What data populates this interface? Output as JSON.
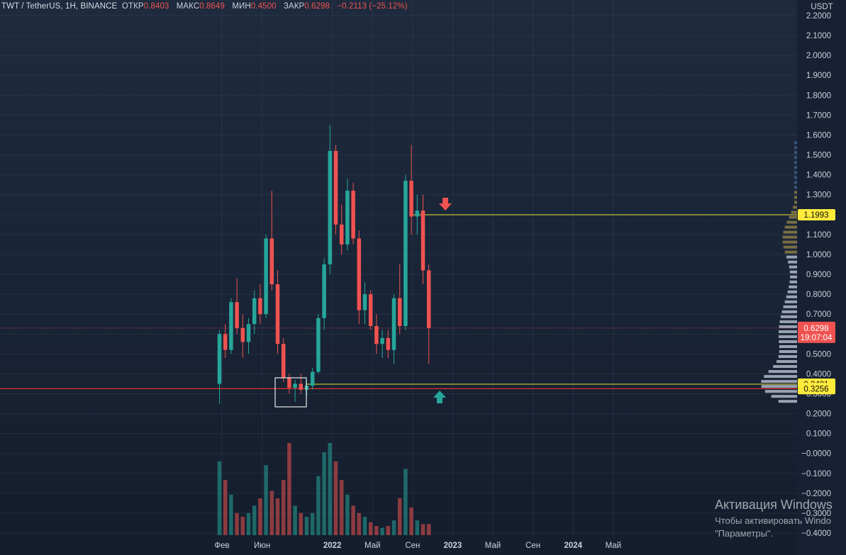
{
  "header": {
    "symbol": "TWT / TetherUS, 1H, BINANCE",
    "open_label": "ОТКР",
    "open_value": "0.8403",
    "high_label": "МАКС",
    "high_value": "0.8649",
    "low_label": "МИН",
    "low_value": "0.4500",
    "close_label": "ЗАКР",
    "close_value": "0.6298",
    "change": "−0.2113 (−25.12%)"
  },
  "watermark": {
    "line1": "Активация Windows",
    "line2": "Чтобы активировать Windo",
    "line3": "\"Параметры\"."
  },
  "colors": {
    "up": "#26a69a",
    "down": "#ef5350",
    "level_line": "#e7e335",
    "support_line": "#d32f2f",
    "price_badge": "#ef5350",
    "level_badge": "#ffeb3b"
  },
  "chart_data": {
    "type": "candlestick",
    "y_axis_unit": "USDT",
    "ylim": [
      -0.42,
      2.23
    ],
    "y_ticks": [
      "2.2000",
      "2.1000",
      "2.0000",
      "1.9000",
      "1.8000",
      "1.7000",
      "1.6000",
      "1.5000",
      "1.4000",
      "1.3000",
      "1.2000",
      "1.1000",
      "1.0000",
      "0.9000",
      "0.8000",
      "0.7000",
      "0.6000",
      "0.5000",
      "0.4000",
      "0.3000",
      "0.2000",
      "0.1000",
      "−0.0000",
      "−0.1000",
      "−0.2000",
      "−0.3000",
      "−0.4000"
    ],
    "x_labels": [
      "Фев",
      "Июн",
      "2022",
      "Май",
      "Сен",
      "2023",
      "Май",
      "Сен",
      "2024",
      "Май"
    ],
    "x_label_index": [
      0,
      4,
      11,
      15,
      19,
      23,
      27,
      31,
      35,
      39
    ],
    "last_price": "0.6298",
    "countdown": "19:07:04",
    "levels": [
      {
        "value": 1.1993,
        "label": "1.1993"
      },
      {
        "value": 0.3481,
        "label": "0.3481"
      },
      {
        "value": 0.3256,
        "label": "0.3256"
      }
    ],
    "candles_ohlc": [
      [
        0.35,
        0.62,
        0.25,
        0.6
      ],
      [
        0.6,
        0.65,
        0.48,
        0.52
      ],
      [
        0.52,
        0.78,
        0.5,
        0.76
      ],
      [
        0.76,
        0.88,
        0.6,
        0.63
      ],
      [
        0.63,
        0.7,
        0.48,
        0.56
      ],
      [
        0.56,
        0.68,
        0.5,
        0.65
      ],
      [
        0.65,
        0.82,
        0.6,
        0.78
      ],
      [
        0.78,
        0.85,
        0.65,
        0.7
      ],
      [
        0.7,
        1.1,
        0.68,
        1.08
      ],
      [
        1.08,
        1.32,
        0.82,
        0.85
      ],
      [
        0.85,
        0.92,
        0.5,
        0.55
      ],
      [
        0.55,
        0.58,
        0.36,
        0.38
      ],
      [
        0.38,
        0.4,
        0.3,
        0.33
      ],
      [
        0.33,
        0.37,
        0.26,
        0.35
      ],
      [
        0.35,
        0.4,
        0.3,
        0.32
      ],
      [
        0.32,
        0.36,
        0.29,
        0.34
      ],
      [
        0.34,
        0.43,
        0.32,
        0.41
      ],
      [
        0.41,
        0.7,
        0.4,
        0.68
      ],
      [
        0.68,
        0.98,
        0.62,
        0.95
      ],
      [
        0.95,
        1.65,
        0.9,
        1.52
      ],
      [
        1.52,
        1.55,
        1.1,
        1.15
      ],
      [
        1.15,
        1.25,
        1.0,
        1.05
      ],
      [
        1.05,
        1.38,
        1.02,
        1.32
      ],
      [
        1.32,
        1.36,
        1.05,
        1.08
      ],
      [
        1.08,
        1.12,
        0.65,
        0.72
      ],
      [
        0.72,
        0.86,
        0.65,
        0.8
      ],
      [
        0.8,
        0.82,
        0.62,
        0.64
      ],
      [
        0.64,
        0.7,
        0.5,
        0.55
      ],
      [
        0.55,
        0.62,
        0.48,
        0.58
      ],
      [
        0.58,
        0.62,
        0.48,
        0.52
      ],
      [
        0.52,
        0.8,
        0.45,
        0.78
      ],
      [
        0.78,
        0.95,
        0.6,
        0.64
      ],
      [
        0.64,
        1.4,
        0.62,
        1.37
      ],
      [
        1.37,
        1.55,
        1.1,
        1.19
      ],
      [
        1.19,
        1.3,
        1.1,
        1.22
      ],
      [
        1.22,
        1.3,
        0.85,
        0.92
      ],
      [
        0.92,
        0.95,
        0.45,
        0.63
      ]
    ],
    "volumes": [
      0.4,
      0.3,
      0.22,
      0.12,
      0.1,
      0.12,
      0.16,
      0.2,
      0.38,
      0.24,
      0.2,
      0.3,
      0.5,
      0.16,
      0.12,
      0.1,
      0.12,
      0.32,
      0.45,
      0.5,
      0.4,
      0.3,
      0.22,
      0.16,
      0.12,
      0.1,
      0.07,
      0.05,
      0.04,
      0.05,
      0.08,
      0.2,
      0.36,
      0.15,
      0.08,
      0.06,
      0.06
    ]
  }
}
